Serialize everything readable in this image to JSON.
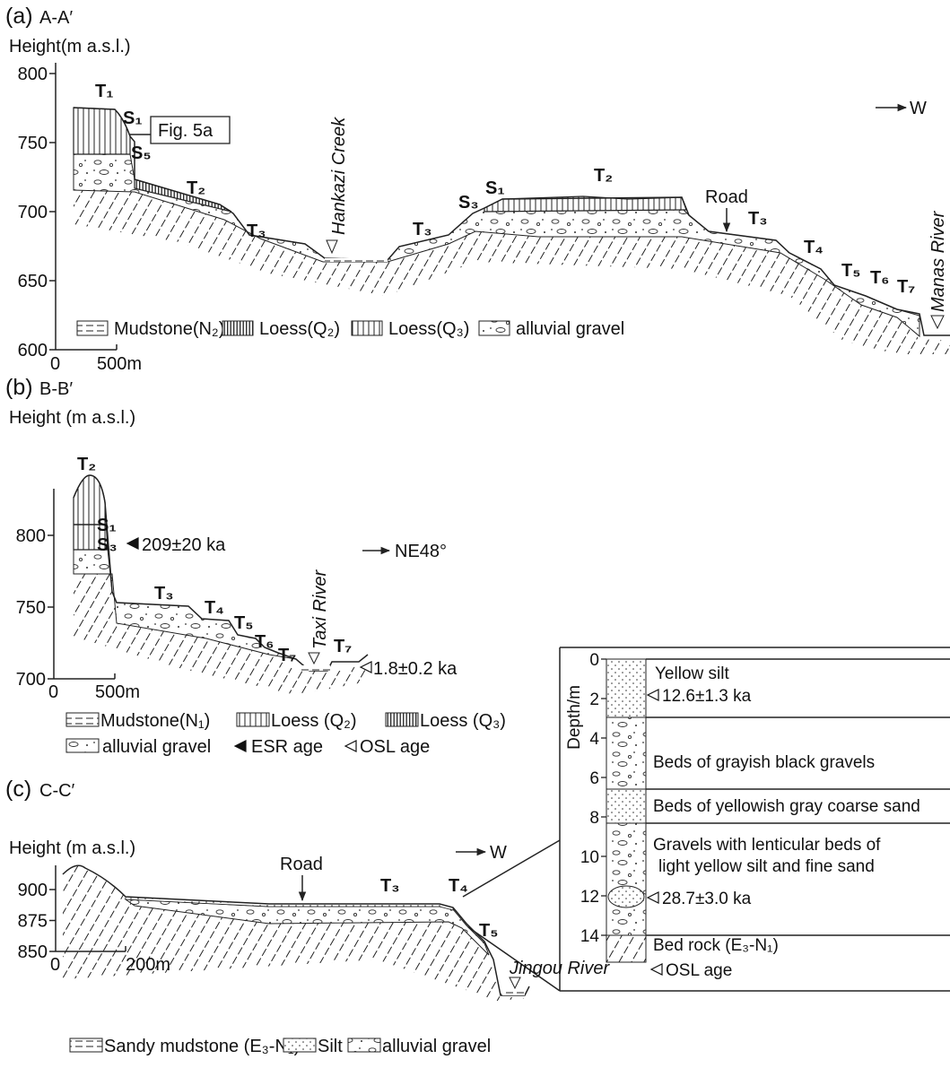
{
  "panel_a": {
    "label": "(a)",
    "section": "A-A′",
    "axis_title": "Height(m a.s.l.)",
    "yticks": [
      800,
      750,
      700,
      650,
      600
    ],
    "scale": [
      "0",
      "500m"
    ],
    "direction": "W",
    "terraces": [
      "T₁",
      "S₁",
      "S₅",
      "T₂",
      "T₃",
      "T₃",
      "S₃",
      "S₁",
      "T₂",
      "T₃",
      "T₄",
      "T₅",
      "T₆",
      "T₇"
    ],
    "figure_ref": "Fig. 5a",
    "road": "Road",
    "rivers": [
      "Hankazi Creek",
      "Manas River"
    ],
    "legend": [
      "Mudstone(N₂)",
      "Loess(Q₂)",
      "Loess(Q₃)",
      "alluvial gravel"
    ]
  },
  "panel_b": {
    "label": "(b)",
    "section": "B-B′",
    "axis_title": "Height (m a.s.l.)",
    "yticks": [
      800,
      750,
      700
    ],
    "scale": [
      "0",
      "500m"
    ],
    "direction": "NE48°",
    "terraces": [
      "T₂",
      "S₁",
      "S₃",
      "T₃",
      "T₄",
      "T₅",
      "T₆",
      "T₇",
      "T₇"
    ],
    "river": "Taxi River",
    "ages": [
      "209±20 ka",
      "1.8±0.2 ka"
    ],
    "legend": [
      "Mudstone(N₁)",
      "Loess (Q₂)",
      "Loess (Q₃)",
      "alluvial gravel",
      "ESR age",
      "OSL age"
    ]
  },
  "panel_c": {
    "label": "(c)",
    "section": "C-C′",
    "axis_title": "Height (m a.s.l.)",
    "yticks": [
      900,
      875,
      850
    ],
    "scale": [
      "0",
      "200m"
    ],
    "direction": "W",
    "road": "Road",
    "terraces": [
      "T₃",
      "T₄",
      "T₅"
    ],
    "river": "Jingou River",
    "legend": [
      "Sandy mudstone (E₃-N₁)",
      "Silt",
      "alluvial gravel"
    ]
  },
  "column": {
    "axis_title": "Depth/m",
    "ticks": [
      0,
      2,
      4,
      6,
      8,
      10,
      12,
      14
    ],
    "layers": [
      "Yellow silt",
      "Beds of grayish black gravels",
      "Beds of yellowish gray coarse sand",
      "Gravels with lenticular beds of",
      "light yellow silt and fine sand",
      "Bed rock (E₃-N₁)"
    ],
    "ages": [
      "12.6±1.3 ka",
      "28.7±3.0 ka"
    ],
    "legend": "OSL age"
  }
}
